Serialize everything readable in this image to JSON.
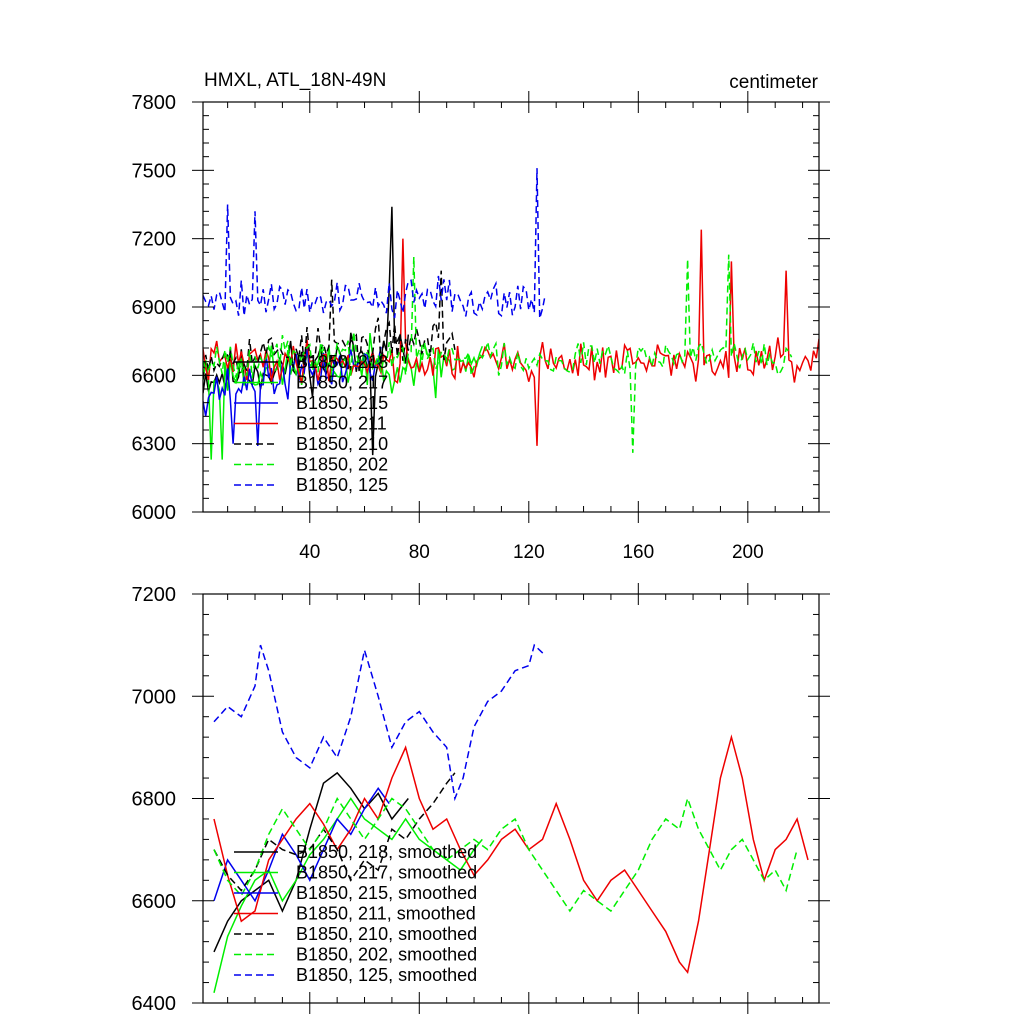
{
  "figure_title": "HMXL, ATL_18N-49N",
  "units_label": "centimeter",
  "colors": {
    "black": "#000000",
    "green": "#00ee00",
    "blue": "#0000ee",
    "red": "#ee0000"
  },
  "chart_data": [
    {
      "type": "line",
      "panel": "top",
      "title": "HMXL, ATL_18N-49N",
      "units": "centimeter",
      "xlim": [
        1,
        226
      ],
      "ylim": [
        6000,
        7800
      ],
      "x_ticks": [
        40,
        80,
        120,
        160,
        200
      ],
      "x_tick_labels": [
        "40",
        "80",
        "120",
        "160",
        "200"
      ],
      "y_ticks": [
        6000,
        6300,
        6600,
        6900,
        7200,
        7500,
        7800
      ],
      "y_tick_labels": [
        "6000",
        "6300",
        "6600",
        "6900",
        "7200",
        "7500",
        "7800"
      ],
      "legend_position": "lower-left",
      "series": [
        {
          "name": "B1850, 218",
          "color": "#000000",
          "dash": "solid",
          "n": 76,
          "mean": 6650,
          "amp": 165,
          "trend": 120,
          "seed": 11,
          "spikes": [
            [
              70,
              7340
            ],
            [
              63,
              6250
            ],
            [
              69,
              6980
            ]
          ]
        },
        {
          "name": "B1850, 217",
          "color": "#00ee00",
          "dash": "solid",
          "n": 103,
          "mean": 6640,
          "amp": 150,
          "trend": 60,
          "seed": 23,
          "spikes": [
            [
              4,
              6230
            ],
            [
              8,
              6230
            ],
            [
              86,
              6500
            ]
          ]
        },
        {
          "name": "B1850, 215",
          "color": "#0000ee",
          "dash": "solid",
          "n": 66,
          "mean": 6600,
          "amp": 150,
          "trend": 140,
          "seed": 37,
          "spikes": [
            [
              12,
              6300
            ],
            [
              21,
              6290
            ]
          ]
        },
        {
          "name": "B1850, 211",
          "color": "#ee0000",
          "dash": "solid",
          "n": 226,
          "mean": 6660,
          "amp": 130,
          "trend": 0,
          "seed": 41,
          "spikes": [
            [
              183,
              7240
            ],
            [
              123,
              6290
            ],
            [
              74,
              7200
            ],
            [
              194,
              7100
            ],
            [
              214,
              7060
            ]
          ]
        },
        {
          "name": "B1850, 210",
          "color": "#000000",
          "dash": "dash",
          "n": 93,
          "mean": 6720,
          "amp": 140,
          "trend": 80,
          "seed": 53,
          "spikes": [
            [
              48,
              7020
            ],
            [
              88,
              7060
            ]
          ]
        },
        {
          "name": "B1850, 202",
          "color": "#00ee00",
          "dash": "dash",
          "n": 216,
          "mean": 6680,
          "amp": 125,
          "trend": 0,
          "seed": 67,
          "spikes": [
            [
              193,
              7130
            ],
            [
              178,
              7110
            ],
            [
              158,
              6260
            ],
            [
              78,
              7120
            ]
          ]
        },
        {
          "name": "B1850, 125",
          "color": "#0000ee",
          "dash": "dash",
          "n": 126,
          "mean": 6940,
          "amp": 130,
          "trend": 0,
          "seed": 79,
          "spikes": [
            [
              123,
              7510
            ],
            [
              10,
              7350
            ],
            [
              20,
              7320
            ],
            [
              124,
              6850
            ]
          ]
        }
      ]
    },
    {
      "type": "line",
      "panel": "bottom",
      "xlim": [
        1,
        226
      ],
      "ylim": [
        6400,
        7200
      ],
      "x_ticks": [
        40,
        80,
        120,
        160,
        200
      ],
      "y_ticks": [
        6400,
        6600,
        6800,
        7000,
        7200
      ],
      "y_tick_labels": [
        "6400",
        "6600",
        "6800",
        "7000",
        "7200"
      ],
      "legend_position": "lower-left",
      "series": [
        {
          "name": "B1850, 218, smoothed",
          "color": "#000000",
          "dash": "solid",
          "x": [
            5,
            10,
            15,
            20,
            25,
            30,
            35,
            40,
            45,
            50,
            55,
            60,
            65,
            70,
            76
          ],
          "y": [
            6500,
            6560,
            6600,
            6620,
            6640,
            6580,
            6640,
            6740,
            6830,
            6850,
            6820,
            6780,
            6810,
            6760,
            6800
          ]
        },
        {
          "name": "B1850, 217, smoothed",
          "color": "#00ee00",
          "dash": "solid",
          "x": [
            5,
            10,
            15,
            20,
            25,
            30,
            35,
            40,
            45,
            50,
            55,
            60,
            65,
            70,
            75,
            80,
            85,
            90,
            95,
            100,
            103
          ],
          "y": [
            6420,
            6530,
            6590,
            6640,
            6660,
            6600,
            6640,
            6690,
            6720,
            6760,
            6800,
            6760,
            6740,
            6720,
            6760,
            6720,
            6700,
            6680,
            6660,
            6700,
            6720
          ]
        },
        {
          "name": "B1850, 215, smoothed",
          "color": "#0000ee",
          "dash": "solid",
          "x": [
            5,
            10,
            15,
            20,
            25,
            30,
            35,
            40,
            45,
            50,
            55,
            60,
            65,
            69
          ],
          "y": [
            6600,
            6680,
            6640,
            6600,
            6660,
            6730,
            6690,
            6640,
            6700,
            6760,
            6730,
            6780,
            6820,
            6790
          ]
        },
        {
          "name": "B1850, 211, smoothed",
          "color": "#ee0000",
          "dash": "solid",
          "x": [
            5,
            10,
            15,
            20,
            25,
            30,
            35,
            40,
            45,
            50,
            55,
            60,
            65,
            70,
            75,
            80,
            85,
            90,
            95,
            100,
            105,
            110,
            115,
            120,
            125,
            130,
            135,
            140,
            145,
            150,
            155,
            160,
            165,
            170,
            175,
            178,
            182,
            186,
            190,
            194,
            198,
            202,
            206,
            210,
            214,
            218,
            222
          ],
          "y": [
            6760,
            6650,
            6560,
            6580,
            6680,
            6720,
            6760,
            6790,
            6750,
            6700,
            6740,
            6800,
            6760,
            6840,
            6900,
            6800,
            6740,
            6760,
            6700,
            6650,
            6680,
            6720,
            6740,
            6700,
            6720,
            6790,
            6720,
            6640,
            6600,
            6640,
            6660,
            6620,
            6580,
            6540,
            6480,
            6460,
            6560,
            6700,
            6840,
            6920,
            6840,
            6720,
            6640,
            6700,
            6720,
            6760,
            6680
          ]
        },
        {
          "name": "B1850, 210, smoothed",
          "color": "#000000",
          "dash": "dash",
          "x": [
            5,
            10,
            15,
            20,
            25,
            30,
            35,
            40,
            45,
            50,
            55,
            60,
            65,
            70,
            75,
            80,
            85,
            90,
            93
          ],
          "y": [
            6700,
            6650,
            6620,
            6660,
            6720,
            6700,
            6690,
            6700,
            6740,
            6700,
            6640,
            6680,
            6660,
            6740,
            6720,
            6760,
            6790,
            6830,
            6850
          ]
        },
        {
          "name": "B1850, 202, smoothed",
          "color": "#00ee00",
          "dash": "dash",
          "x": [
            5,
            10,
            15,
            20,
            25,
            30,
            35,
            40,
            45,
            50,
            55,
            60,
            65,
            70,
            75,
            80,
            85,
            90,
            95,
            100,
            105,
            110,
            115,
            120,
            125,
            130,
            135,
            140,
            145,
            150,
            155,
            160,
            165,
            170,
            175,
            178,
            182,
            186,
            190,
            194,
            198,
            202,
            206,
            210,
            214,
            218
          ],
          "y": [
            6700,
            6640,
            6610,
            6660,
            6730,
            6780,
            6740,
            6700,
            6740,
            6800,
            6760,
            6720,
            6760,
            6800,
            6780,
            6740,
            6700,
            6680,
            6700,
            6720,
            6700,
            6740,
            6760,
            6700,
            6660,
            6620,
            6580,
            6620,
            6600,
            6580,
            6620,
            6660,
            6720,
            6760,
            6740,
            6800,
            6740,
            6700,
            6660,
            6700,
            6720,
            6680,
            6640,
            6660,
            6620,
            6700
          ]
        },
        {
          "name": "B1850, 125, smoothed",
          "color": "#0000ee",
          "dash": "dash",
          "x": [
            5,
            10,
            15,
            20,
            22,
            25,
            30,
            35,
            40,
            45,
            50,
            55,
            60,
            65,
            70,
            75,
            80,
            85,
            90,
            93,
            96,
            100,
            105,
            110,
            115,
            120,
            122,
            126
          ],
          "y": [
            6950,
            6980,
            6960,
            7020,
            7100,
            7050,
            6930,
            6880,
            6860,
            6920,
            6880,
            6960,
            7090,
            7000,
            6900,
            6950,
            6970,
            6930,
            6900,
            6800,
            6840,
            6940,
            6990,
            7010,
            7050,
            7060,
            7100,
            7080
          ]
        }
      ]
    }
  ]
}
